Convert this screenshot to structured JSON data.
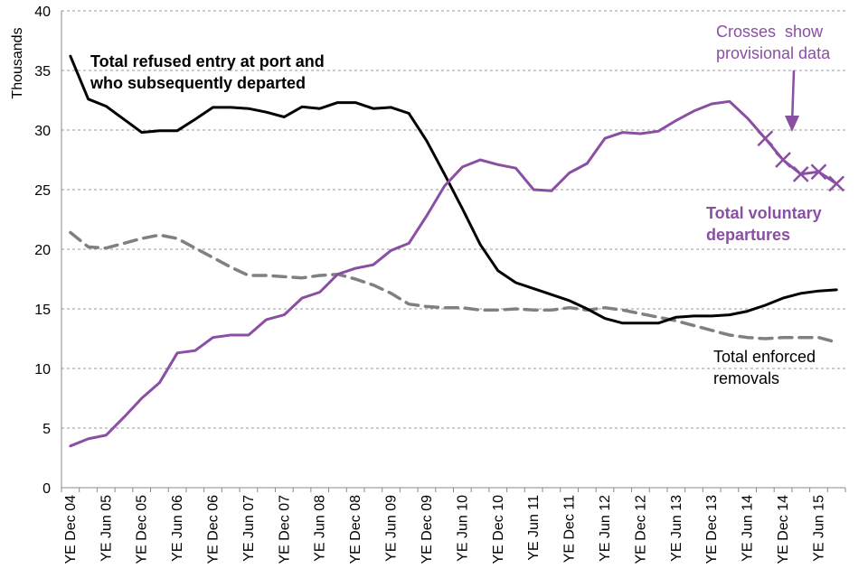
{
  "chart_data": {
    "type": "line",
    "ylabel": "Thousands",
    "ylim": [
      0,
      40
    ],
    "yticks": [
      0,
      5,
      10,
      15,
      20,
      25,
      30,
      35,
      40
    ],
    "grid": true,
    "n_points": 44,
    "x_tick_labels": [
      {
        "index": 0,
        "label": "YE Dec 04"
      },
      {
        "index": 2,
        "label": "YE Jun 05"
      },
      {
        "index": 4,
        "label": "YE Dec 05"
      },
      {
        "index": 6,
        "label": "YE Jun 06"
      },
      {
        "index": 8,
        "label": "YE Dec 06"
      },
      {
        "index": 10,
        "label": "YE Jun 07"
      },
      {
        "index": 12,
        "label": "YE Dec 07"
      },
      {
        "index": 14,
        "label": "YE Jun 08"
      },
      {
        "index": 16,
        "label": "YE Dec 08"
      },
      {
        "index": 18,
        "label": "YE Jun 09"
      },
      {
        "index": 20,
        "label": "YE Dec 09"
      },
      {
        "index": 22,
        "label": "YE Jun 10"
      },
      {
        "index": 24,
        "label": "YE Dec 10"
      },
      {
        "index": 26,
        "label": "YE Jun 11"
      },
      {
        "index": 28,
        "label": "YE Dec 11"
      },
      {
        "index": 30,
        "label": "YE Jun 12"
      },
      {
        "index": 32,
        "label": "YE Dec 12"
      },
      {
        "index": 34,
        "label": "YE Jun 13"
      },
      {
        "index": 36,
        "label": "YE Dec 13"
      },
      {
        "index": 38,
        "label": "YE Jun 14"
      },
      {
        "index": 40,
        "label": "YE Dec 14"
      },
      {
        "index": 42,
        "label": "YE Jun 15"
      }
    ],
    "series": [
      {
        "name": "Total refused entry at port and who subsequently departed",
        "color": "#000000",
        "style": "solid",
        "values": [
          36.2,
          32.6,
          32.0,
          30.9,
          29.8,
          29.95,
          29.95,
          30.9,
          31.9,
          31.9,
          31.8,
          31.5,
          31.1,
          31.95,
          31.8,
          32.3,
          32.3,
          31.8,
          31.9,
          31.4,
          29.1,
          26.3,
          23.4,
          20.4,
          18.2,
          17.2,
          16.7,
          16.2,
          15.7,
          15.0,
          14.2,
          13.8,
          13.8,
          13.8,
          14.3,
          14.4,
          14.4,
          14.5,
          14.8,
          15.3,
          15.9,
          16.3,
          16.5,
          16.6
        ],
        "provisional_from": null
      },
      {
        "name": "Total voluntary departures",
        "color": "#8a4fa3",
        "style": "solid",
        "values": [
          3.5,
          4.1,
          4.4,
          5.9,
          7.5,
          8.8,
          11.3,
          11.5,
          12.6,
          12.8,
          12.8,
          14.1,
          14.5,
          15.9,
          16.4,
          17.9,
          18.4,
          18.7,
          19.9,
          20.5,
          22.8,
          25.3,
          26.9,
          27.5,
          27.1,
          26.8,
          25.0,
          24.9,
          26.4,
          27.2,
          29.3,
          29.8,
          29.7,
          29.9,
          30.8,
          31.6,
          32.2,
          32.4,
          31.0,
          29.3,
          27.5,
          26.3,
          26.5,
          25.5
        ],
        "provisional_from": 39
      },
      {
        "name": "Total enforced removals",
        "color": "#808080",
        "style": "dashed",
        "values": [
          21.4,
          20.2,
          20.1,
          20.5,
          20.9,
          21.2,
          20.9,
          20.1,
          19.3,
          18.5,
          17.8,
          17.8,
          17.7,
          17.6,
          17.8,
          17.9,
          17.5,
          17.0,
          16.3,
          15.4,
          15.2,
          15.1,
          15.1,
          14.9,
          14.9,
          15.0,
          14.9,
          14.9,
          15.1,
          14.9,
          15.1,
          14.9,
          14.6,
          14.3,
          14.0,
          13.6,
          13.2,
          12.8,
          12.6,
          12.5,
          12.6,
          12.6,
          12.6,
          12.2
        ],
        "provisional_from": null
      }
    ],
    "annotations": {
      "refused": [
        "Total refused entry at port and",
        "who subsequently departed"
      ],
      "voluntary": [
        "Total voluntary",
        "departures"
      ],
      "enforced": [
        "Total enforced",
        "removals"
      ],
      "provisional": [
        "Crosses  show",
        "provisional data"
      ]
    }
  }
}
